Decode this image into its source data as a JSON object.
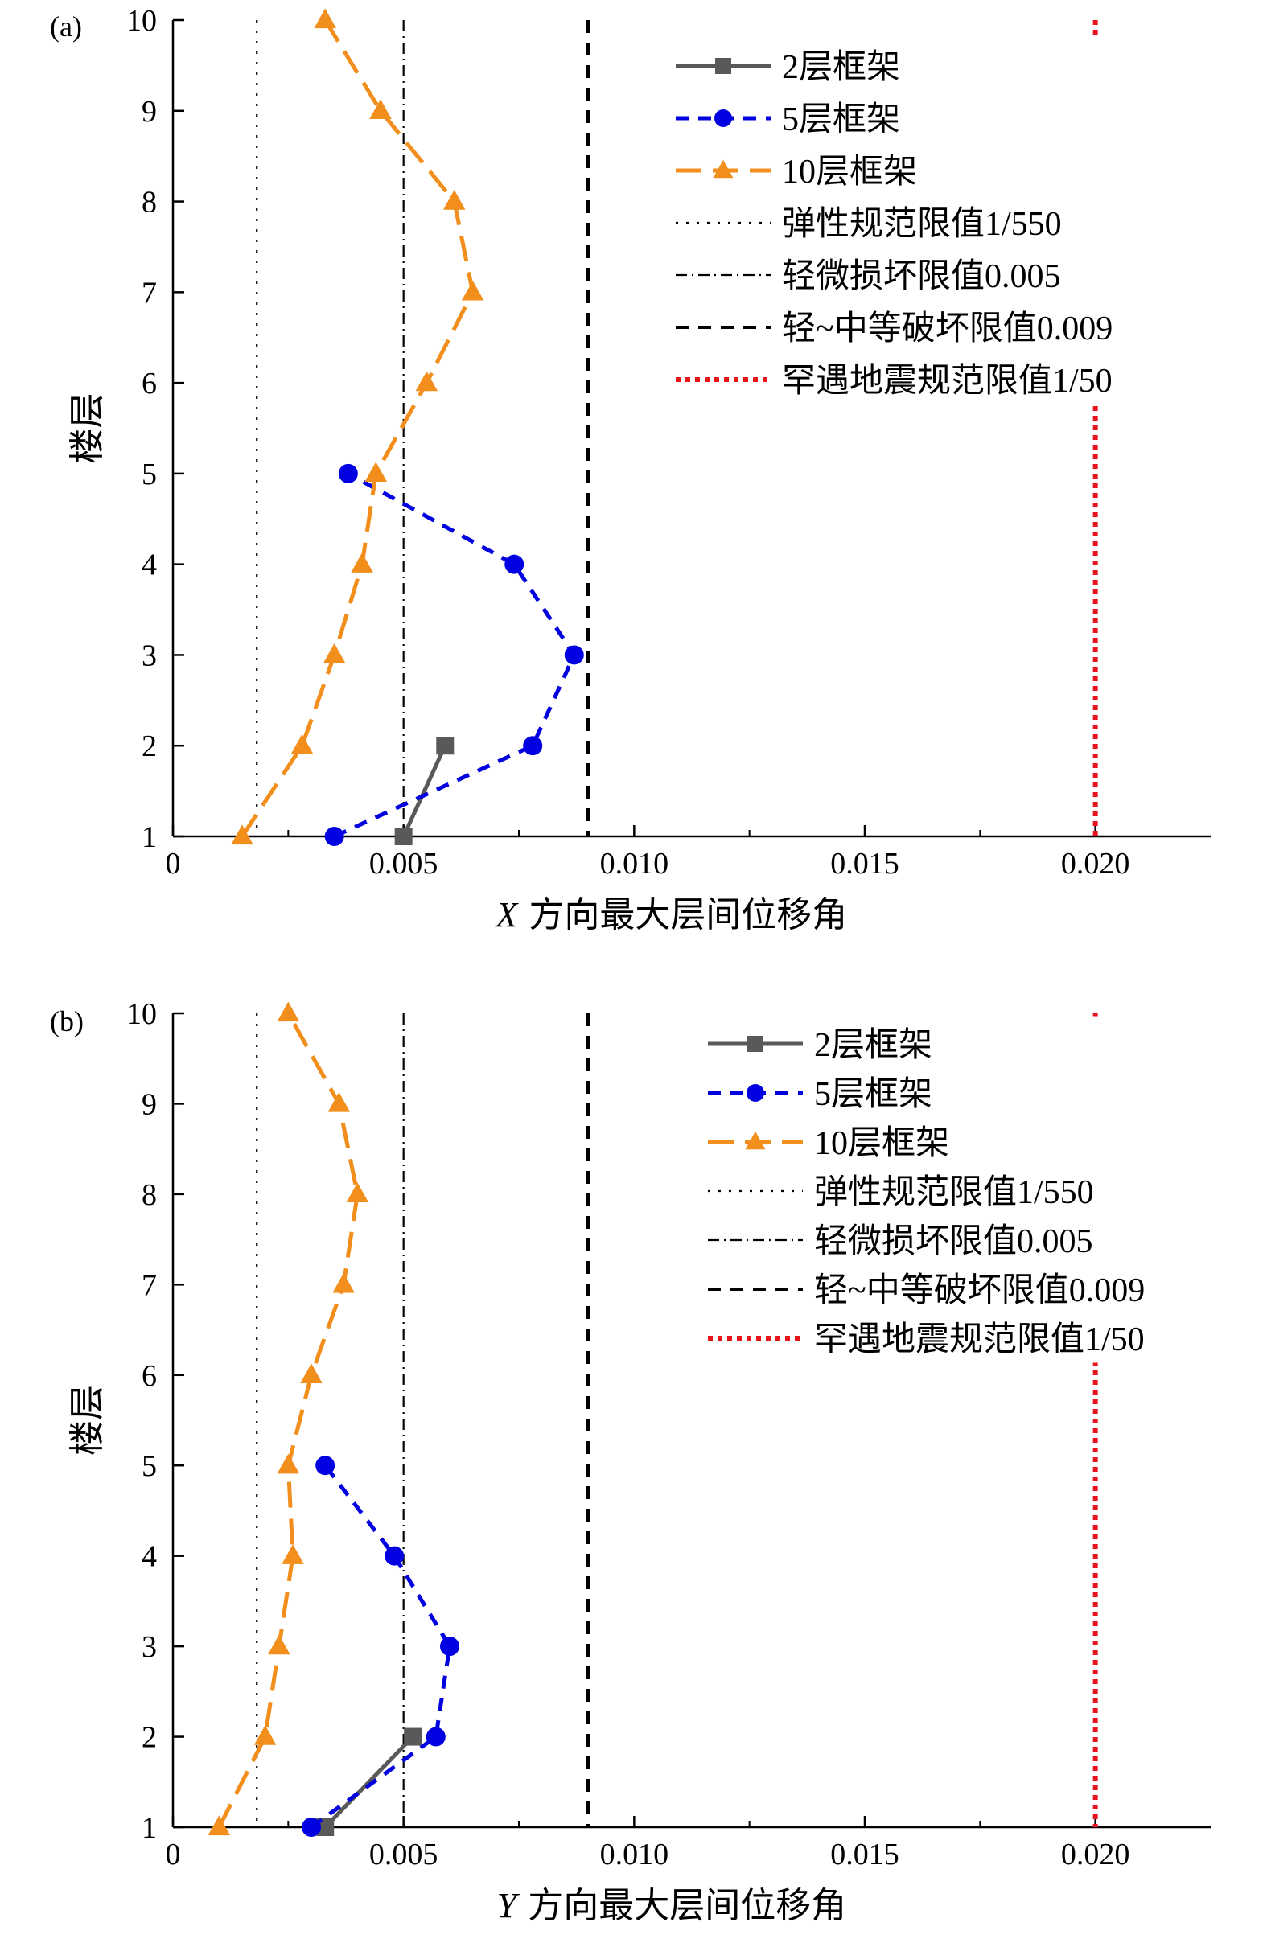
{
  "chart_data": [
    {
      "type": "line",
      "panel_label": "(a)",
      "xlabel_var": "X",
      "xlabel_rest": "方向最大层间位移角",
      "ylabel": "楼层",
      "xlim": [
        0,
        0.0225
      ],
      "ylim": [
        1,
        10
      ],
      "x_ticks": [
        0,
        0.005,
        0.01,
        0.015,
        0.02
      ],
      "x_tick_labels": [
        "0",
        "0.005",
        "0.010",
        "0.015",
        "0.020"
      ],
      "y_ticks": [
        1,
        2,
        3,
        4,
        5,
        6,
        7,
        8,
        9,
        10
      ],
      "y_tick_labels": [
        "1",
        "2",
        "3",
        "4",
        "5",
        "6",
        "7",
        "8",
        "9",
        "10"
      ],
      "grid": false,
      "legend_position": "top-right",
      "series": [
        {
          "name": "2层框架",
          "color": "#595959",
          "marker": "square",
          "dash": "solid",
          "points": [
            [
              0.005,
              1
            ],
            [
              0.0059,
              2
            ]
          ]
        },
        {
          "name": "5层框架",
          "color": "#0000e0",
          "marker": "circle",
          "dash": "dash",
          "points": [
            [
              0.0035,
              1
            ],
            [
              0.0078,
              2
            ],
            [
              0.0087,
              3
            ],
            [
              0.0074,
              4
            ],
            [
              0.0038,
              5
            ]
          ]
        },
        {
          "name": "10层框架",
          "color": "#f28e1c",
          "marker": "triangle",
          "dash": "longdash",
          "points": [
            [
              0.0015,
              1
            ],
            [
              0.0028,
              2
            ],
            [
              0.0035,
              3
            ],
            [
              0.0041,
              4
            ],
            [
              0.0044,
              5
            ],
            [
              0.0055,
              6
            ],
            [
              0.0065,
              7
            ],
            [
              0.0061,
              8
            ],
            [
              0.0045,
              9
            ],
            [
              0.0033,
              10
            ]
          ]
        }
      ],
      "reference_lines": [
        {
          "name": "弹性规范限值1/550",
          "x": 0.001818,
          "color": "#000000",
          "dash": "dot"
        },
        {
          "name": "轻微损坏限值0.005",
          "x": 0.005,
          "color": "#000000",
          "dash": "dashdot"
        },
        {
          "name": "轻~中等破坏限值0.009",
          "x": 0.009,
          "color": "#000000",
          "dash": "dash"
        },
        {
          "name": "罕遇地震规范限值1/50",
          "x": 0.02,
          "color": "#e8141c",
          "dash": "dot-thick"
        }
      ]
    },
    {
      "type": "line",
      "panel_label": "(b)",
      "xlabel_var": "Y",
      "xlabel_rest": "方向最大层间位移角",
      "ylabel": "楼层",
      "xlim": [
        0,
        0.0225
      ],
      "ylim": [
        1,
        10
      ],
      "x_ticks": [
        0,
        0.005,
        0.01,
        0.015,
        0.02
      ],
      "x_tick_labels": [
        "0",
        "0.005",
        "0.010",
        "0.015",
        "0.020"
      ],
      "y_ticks": [
        1,
        2,
        3,
        4,
        5,
        6,
        7,
        8,
        9,
        10
      ],
      "y_tick_labels": [
        "1",
        "2",
        "3",
        "4",
        "5",
        "6",
        "7",
        "8",
        "9",
        "10"
      ],
      "grid": false,
      "legend_position": "top-right",
      "series": [
        {
          "name": "2层框架",
          "color": "#595959",
          "marker": "square",
          "dash": "solid",
          "points": [
            [
              0.0033,
              1
            ],
            [
              0.0052,
              2
            ]
          ]
        },
        {
          "name": "5层框架",
          "color": "#0000e0",
          "marker": "circle",
          "dash": "dash",
          "points": [
            [
              0.003,
              1
            ],
            [
              0.0057,
              2
            ],
            [
              0.006,
              3
            ],
            [
              0.0048,
              4
            ],
            [
              0.0033,
              5
            ]
          ]
        },
        {
          "name": "10层框架",
          "color": "#f28e1c",
          "marker": "triangle",
          "dash": "longdash",
          "points": [
            [
              0.001,
              1
            ],
            [
              0.002,
              2
            ],
            [
              0.0023,
              3
            ],
            [
              0.0026,
              4
            ],
            [
              0.0025,
              5
            ],
            [
              0.003,
              6
            ],
            [
              0.0037,
              7
            ],
            [
              0.004,
              8
            ],
            [
              0.0036,
              9
            ],
            [
              0.0025,
              10
            ]
          ]
        }
      ],
      "reference_lines": [
        {
          "name": "弹性规范限值1/550",
          "x": 0.001818,
          "color": "#000000",
          "dash": "dot"
        },
        {
          "name": "轻微损坏限值0.005",
          "x": 0.005,
          "color": "#000000",
          "dash": "dashdot"
        },
        {
          "name": "轻~中等破坏限值0.009",
          "x": 0.009,
          "color": "#000000",
          "dash": "dash"
        },
        {
          "name": "罕遇地震规范限值1/50",
          "x": 0.02,
          "color": "#e8141c",
          "dash": "dot-thick"
        }
      ]
    }
  ]
}
